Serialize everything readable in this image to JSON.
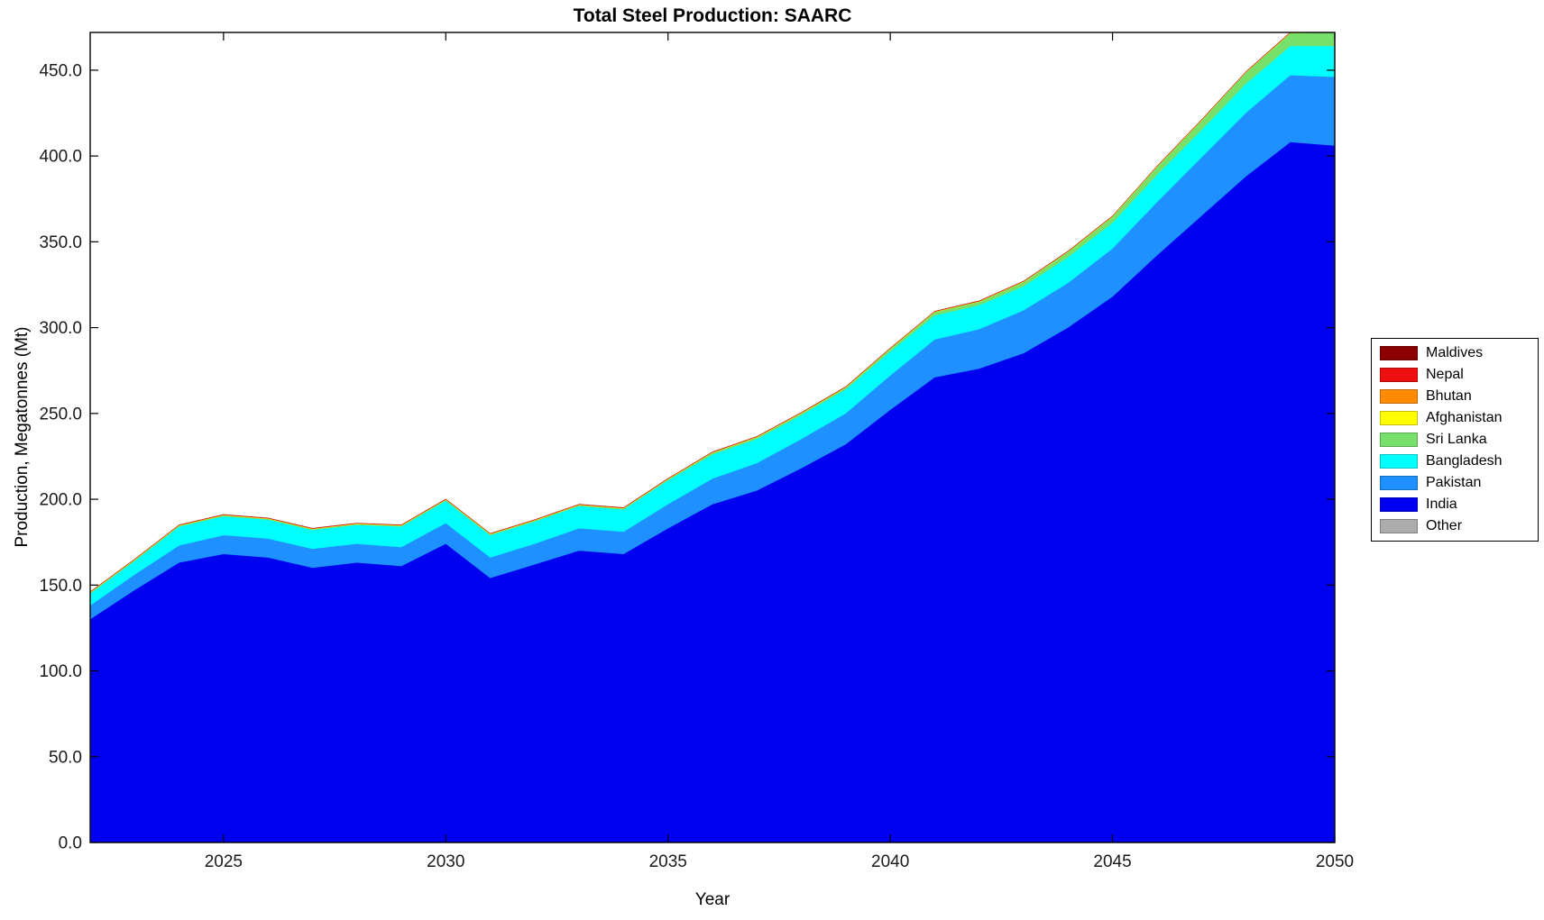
{
  "chart_data": {
    "type": "area",
    "stacked": true,
    "title": "Total Steel Production: SAARC",
    "xlabel": "Year",
    "ylabel": "Production, Megatonnes (Mt)",
    "legend_position": "right-outside",
    "grid": false,
    "xlim": [
      2022,
      2050
    ],
    "ylim": [
      0,
      472
    ],
    "xticks": [
      2025,
      2030,
      2035,
      2040,
      2045,
      2050
    ],
    "yticks": [
      0,
      50,
      100,
      150,
      200,
      250,
      300,
      350,
      400,
      450
    ],
    "ytick_labels": [
      "0.0",
      "50.0",
      "100.0",
      "150.0",
      "200.0",
      "250.0",
      "300.0",
      "350.0",
      "400.0",
      "450.0"
    ],
    "x": [
      2022,
      2023,
      2024,
      2025,
      2026,
      2027,
      2028,
      2029,
      2030,
      2031,
      2032,
      2033,
      2034,
      2035,
      2036,
      2037,
      2038,
      2039,
      2040,
      2041,
      2042,
      2043,
      2044,
      2045,
      2046,
      2047,
      2048,
      2049,
      2050
    ],
    "series": [
      {
        "name": "India",
        "color": "#0000F0",
        "values": [
          130,
          147,
          163,
          168,
          166,
          160,
          163,
          161,
          174,
          154,
          162,
          170,
          168,
          183,
          197,
          205,
          218,
          232,
          252,
          271,
          276,
          285,
          300,
          318,
          342,
          365,
          388,
          408,
          406
        ]
      },
      {
        "name": "Pakistan",
        "color": "#1E90FF",
        "values": [
          8,
          9,
          10,
          11,
          11,
          11,
          11,
          11,
          12,
          12,
          12,
          13,
          13,
          14,
          15,
          16,
          17,
          18,
          20,
          22,
          23,
          25,
          26,
          28,
          31,
          34,
          37,
          39,
          40
        ]
      },
      {
        "name": "Bangladesh",
        "color": "#00FFFF",
        "values": [
          7,
          8,
          11,
          11,
          11,
          11,
          11,
          12,
          13,
          13,
          13,
          13,
          13,
          14,
          14,
          14,
          14,
          14,
          14,
          14,
          14,
          14,
          15,
          15,
          16,
          16,
          17,
          17,
          18
        ]
      },
      {
        "name": "Sri Lanka",
        "color": "#77E06B",
        "values": [
          0.5,
          0.5,
          0.5,
          0.5,
          0.5,
          0.5,
          0.5,
          0.5,
          0.5,
          0.5,
          0.5,
          0.5,
          0.5,
          0.5,
          1,
          1,
          1,
          1,
          1.5,
          2,
          2,
          2.5,
          3,
          3.5,
          4.5,
          5.5,
          6.5,
          7.5,
          8
        ]
      },
      {
        "name": "Afghanistan",
        "color": "#FFFF00",
        "values": 0.2
      },
      {
        "name": "Bhutan",
        "color": "#FF8C00",
        "values": 0.1
      },
      {
        "name": "Nepal",
        "color": "#EE1010",
        "values": 0.3
      },
      {
        "name": "Maldives",
        "color": "#8B0000",
        "values": 0.05
      },
      {
        "name": "Other",
        "color": "#ABABAB",
        "values": 0.2
      }
    ],
    "legend": [
      {
        "label": "Maldives",
        "color": "#8B0000"
      },
      {
        "label": "Nepal",
        "color": "#EE1010"
      },
      {
        "label": "Bhutan",
        "color": "#FF8C00"
      },
      {
        "label": "Afghanistan",
        "color": "#FFFF00"
      },
      {
        "label": "Sri Lanka",
        "color": "#77E06B"
      },
      {
        "label": "Bangladesh",
        "color": "#00FFFF"
      },
      {
        "label": "Pakistan",
        "color": "#1E90FF"
      },
      {
        "label": "India",
        "color": "#0000F0"
      },
      {
        "label": "Other",
        "color": "#ABABAB"
      }
    ]
  }
}
